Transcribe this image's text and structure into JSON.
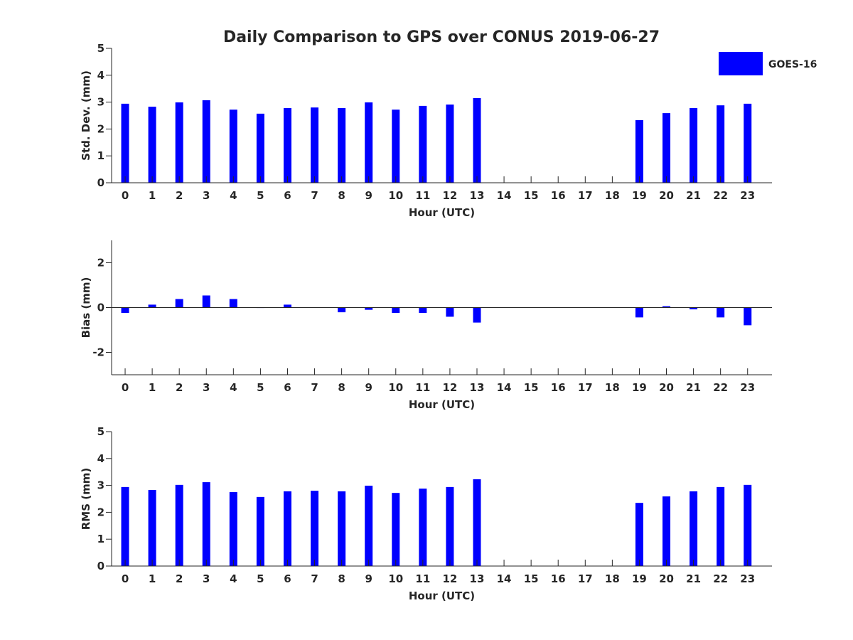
{
  "chart_data": {
    "type": "bar",
    "title": "Daily Comparison to GPS over CONUS 2019-06-27",
    "legend": {
      "entries": [
        "GOES-16"
      ],
      "placement": "top-right"
    },
    "colors": {
      "bar": "#0000ff",
      "axis": "#262626"
    },
    "x": [
      0,
      1,
      2,
      3,
      4,
      5,
      6,
      7,
      8,
      9,
      10,
      11,
      12,
      13,
      14,
      15,
      16,
      17,
      18,
      19,
      20,
      21,
      22,
      23
    ],
    "xlim": [
      -0.5,
      23.9
    ],
    "panels": [
      {
        "name": "std-dev",
        "xlabel": "Hour (UTC)",
        "ylabel": "Std. Dev. (mm)",
        "ylim": [
          0,
          5
        ],
        "yticks": [
          0,
          1,
          2,
          3,
          4,
          5
        ],
        "ytick_labels": [
          "0",
          "1",
          "2",
          "3",
          "4",
          "5"
        ],
        "series": [
          {
            "name": "GOES-16",
            "values": [
              2.94,
              2.83,
              2.99,
              3.07,
              2.72,
              2.57,
              2.78,
              2.8,
              2.78,
              2.99,
              2.72,
              2.86,
              2.91,
              3.15,
              null,
              null,
              null,
              null,
              null,
              2.33,
              2.59,
              2.78,
              2.88,
              2.94
            ]
          }
        ]
      },
      {
        "name": "bias",
        "xlabel": "Hour (UTC)",
        "ylabel": "Bias (mm)",
        "ylim": [
          -3,
          3
        ],
        "yticks": [
          -2,
          0,
          2
        ],
        "ytick_labels": [
          "-2",
          "0",
          "2"
        ],
        "series": [
          {
            "name": "GOES-16",
            "values": [
              -0.24,
              0.13,
              0.38,
              0.54,
              0.38,
              -0.02,
              0.13,
              0.0,
              -0.21,
              -0.1,
              -0.24,
              -0.24,
              -0.41,
              -0.67,
              null,
              null,
              null,
              null,
              null,
              -0.44,
              0.06,
              -0.08,
              -0.44,
              -0.79
            ]
          }
        ]
      },
      {
        "name": "rms",
        "xlabel": "Hour (UTC)",
        "ylabel": "RMS (mm)",
        "ylim": [
          0,
          5
        ],
        "yticks": [
          0,
          1,
          2,
          3,
          4,
          5
        ],
        "ytick_labels": [
          "0",
          "1",
          "2",
          "3",
          "4",
          "5"
        ],
        "series": [
          {
            "name": "GOES-16",
            "values": [
              2.94,
              2.83,
              3.02,
              3.12,
              2.75,
              2.57,
              2.78,
              2.8,
              2.78,
              2.99,
              2.72,
              2.88,
              2.94,
              3.23,
              null,
              null,
              null,
              null,
              null,
              2.35,
              2.59,
              2.78,
              2.94,
              3.02
            ]
          }
        ]
      }
    ]
  }
}
